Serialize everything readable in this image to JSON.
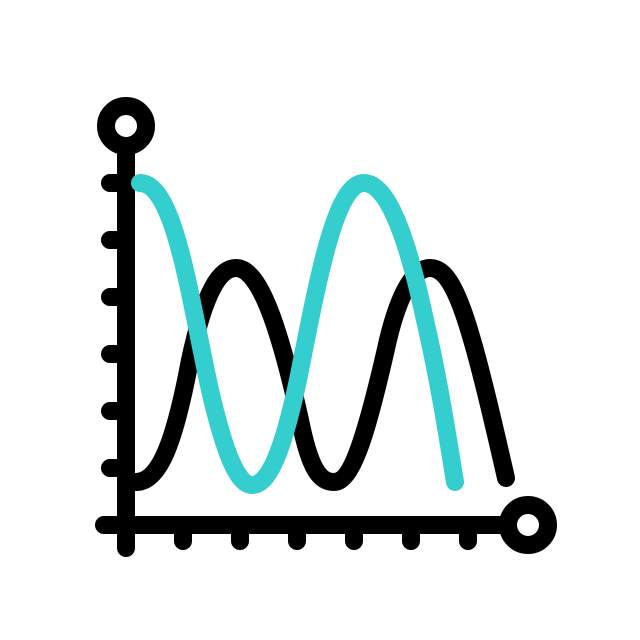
{
  "icon": {
    "name": "wave-chart-icon",
    "colors": {
      "stroke": "#000000",
      "accent": "#35CECE",
      "background": "#FFFFFF"
    }
  }
}
